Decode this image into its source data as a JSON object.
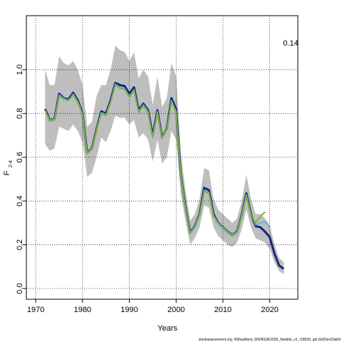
{
  "chart_data": {
    "type": "line",
    "ylabel": "F",
    "ylabel_sub": "2-4",
    "xlabel": "Years",
    "annotation": "0.14",
    "footer": "stockassessment.org, NShaddock_WGNSSK2025_Newlds_v1, r18625, git:c9c81ec53a0d",
    "x": [
      1972,
      1973,
      1974,
      1975,
      1976,
      1977,
      1978,
      1979,
      1980,
      1981,
      1982,
      1983,
      1984,
      1985,
      1986,
      1987,
      1988,
      1989,
      1990,
      1991,
      1992,
      1993,
      1994,
      1995,
      1996,
      1997,
      1998,
      1999,
      2000,
      2001,
      2002,
      2003,
      2004,
      2005,
      2006,
      2007,
      2008,
      2009,
      2010,
      2011,
      2012,
      2013,
      2014,
      2015,
      2016,
      2017,
      2018,
      2019,
      2020,
      2021,
      2022,
      2023
    ],
    "band": {
      "color": "#bebebe",
      "high": [
        1.0,
        0.93,
        0.93,
        1.06,
        1.03,
        1.02,
        1.04,
        1.0,
        0.93,
        0.74,
        0.76,
        0.88,
        0.93,
        0.93,
        1.0,
        1.11,
        1.09,
        1.08,
        1.04,
        1.08,
        0.96,
        1.0,
        0.97,
        0.84,
        0.97,
        0.83,
        0.87,
        1.03,
        0.97,
        0.62,
        0.45,
        0.31,
        0.34,
        0.41,
        0.55,
        0.54,
        0.41,
        0.36,
        0.34,
        0.32,
        0.3,
        0.32,
        0.4,
        0.52,
        0.41,
        0.34,
        0.34,
        0.32,
        0.29,
        0.2,
        0.14,
        0.12
      ],
      "low": [
        0.66,
        0.63,
        0.64,
        0.74,
        0.73,
        0.72,
        0.75,
        0.72,
        0.67,
        0.51,
        0.53,
        0.6,
        0.69,
        0.67,
        0.72,
        0.79,
        0.78,
        0.78,
        0.75,
        0.77,
        0.69,
        0.71,
        0.68,
        0.58,
        0.68,
        0.57,
        0.6,
        0.72,
        0.68,
        0.43,
        0.31,
        0.2,
        0.23,
        0.28,
        0.38,
        0.37,
        0.28,
        0.24,
        0.22,
        0.2,
        0.19,
        0.21,
        0.27,
        0.36,
        0.28,
        0.23,
        0.22,
        0.21,
        0.18,
        0.12,
        0.08,
        0.065
      ]
    },
    "series": [
      {
        "color": "#1a237e",
        "width": 3,
        "values": [
          0.82,
          0.77,
          0.775,
          0.89,
          0.87,
          0.865,
          0.895,
          0.86,
          0.8,
          0.62,
          0.64,
          0.73,
          0.81,
          0.8,
          0.86,
          0.94,
          0.93,
          0.925,
          0.89,
          0.92,
          0.815,
          0.845,
          0.815,
          0.7,
          0.815,
          0.69,
          0.73,
          0.87,
          0.82,
          0.52,
          0.375,
          0.255,
          0.285,
          0.34,
          0.46,
          0.45,
          0.34,
          0.3,
          0.28,
          0.26,
          0.245,
          0.26,
          0.335,
          0.435,
          0.34,
          0.285,
          0.28,
          0.26,
          0.235,
          0.16,
          0.105,
          0.09
        ]
      },
      {
        "color": "#4fb3d9",
        "width": 1.5,
        "values": [
          0.815,
          0.77,
          0.775,
          0.885,
          0.87,
          0.86,
          0.89,
          0.855,
          0.8,
          0.62,
          0.64,
          0.73,
          0.805,
          0.795,
          0.855,
          0.935,
          0.92,
          0.915,
          0.88,
          0.91,
          0.81,
          0.84,
          0.81,
          0.695,
          0.81,
          0.69,
          0.73,
          0.86,
          0.81,
          0.52,
          0.375,
          0.255,
          0.285,
          0.34,
          0.45,
          0.44,
          0.335,
          0.3,
          0.28,
          0.26,
          0.245,
          0.26,
          0.335,
          0.43,
          0.34,
          0.29,
          0.3,
          0.305,
          0.28,
          null,
          null,
          null
        ]
      },
      {
        "color": "#7cb342",
        "width": 2,
        "values": [
          0.815,
          0.765,
          0.77,
          0.88,
          0.865,
          0.86,
          0.885,
          0.85,
          0.795,
          0.615,
          0.635,
          0.725,
          0.8,
          0.79,
          0.85,
          0.93,
          0.915,
          0.91,
          0.875,
          0.905,
          0.805,
          0.835,
          0.805,
          0.69,
          0.805,
          0.685,
          0.725,
          0.855,
          0.805,
          0.515,
          0.37,
          0.25,
          0.28,
          0.335,
          0.445,
          0.435,
          0.33,
          0.295,
          0.275,
          0.255,
          0.24,
          0.255,
          0.33,
          0.425,
          0.335,
          0.3,
          0.33,
          0.35,
          null,
          null,
          null,
          null
        ]
      }
    ],
    "xlim": [
      1968,
      2026
    ],
    "ylim": [
      -0.049,
      1.247
    ],
    "xticks": [
      1970,
      1980,
      1990,
      2000,
      2010,
      2020
    ],
    "yticks": [
      {
        "value": 0,
        "label": "0.0"
      },
      0.2,
      0.4,
      0.6,
      0.8,
      {
        "value": 1,
        "label": "1.0"
      }
    ],
    "grid": true
  }
}
